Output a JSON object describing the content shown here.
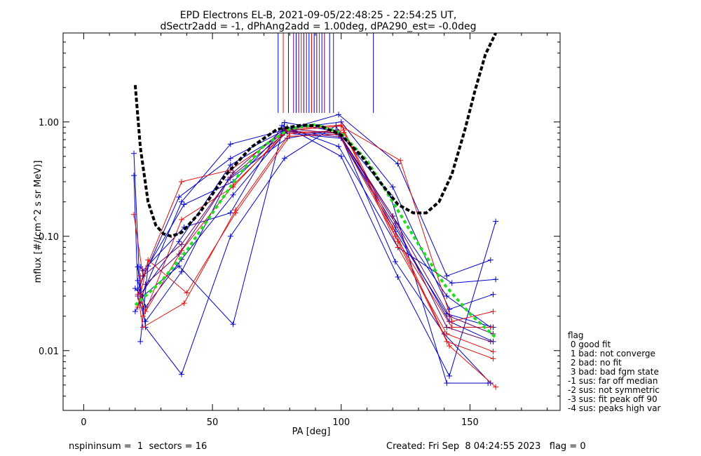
{
  "chart_data": {
    "type": "line",
    "title": "EPD Electrons EL-B, 2021-09-05/22:48:25 - 22:54:25 UT,",
    "subtitle": "dSectr2add = -1, dPhAng2add = 1.00deg, dPA290_est=  -0.0deg",
    "xlabel": "PA [deg]",
    "ylabel": "mflux [#/(cm^2 s sr MeV)]",
    "xlim": [
      -8,
      185
    ],
    "ylim": [
      0.003,
      6.0
    ],
    "yscale": "log",
    "xticks": [
      0,
      50,
      100,
      150
    ],
    "xtick_labels": [
      "0",
      "50",
      "100",
      "150"
    ],
    "yticks": [
      0.01,
      0.1,
      1.0
    ],
    "ytick_labels": [
      "0.01",
      "0.10",
      "1.00"
    ],
    "colors": {
      "blue": "#0000cc",
      "red": "#e01010",
      "purple": "#660066",
      "green": "#22dd22",
      "black": "#000000"
    },
    "series": [
      {
        "color": "blue",
        "x": [
          19.5,
          22,
          38,
          57,
          78,
          99,
          122,
          141,
          158
        ],
        "y": [
          0.53,
          0.028,
          0.2,
          0.64,
          0.85,
          1.16,
          0.43,
          0.045,
          0.062
        ]
      },
      {
        "color": "blue",
        "x": [
          19.5,
          21,
          37,
          57,
          79,
          100,
          120,
          142,
          159
        ],
        "y": [
          0.34,
          0.034,
          0.22,
          0.48,
          0.87,
          1.0,
          0.27,
          0.023,
          0.031
        ]
      },
      {
        "color": "blue",
        "x": [
          21,
          24,
          38,
          57,
          78,
          98,
          121,
          140,
          158
        ],
        "y": [
          0.054,
          0.016,
          0.0062,
          0.1,
          0.48,
          0.93,
          0.06,
          0.014,
          0.0052
        ]
      },
      {
        "color": "blue",
        "x": [
          22,
          25,
          39,
          58,
          79,
          100,
          122,
          142,
          160
        ],
        "y": [
          0.012,
          0.055,
          0.19,
          0.3,
          0.9,
          0.5,
          0.044,
          0.006,
          0.135
        ]
      },
      {
        "color": "blue",
        "x": [
          20,
          23,
          37,
          58,
          78,
          99,
          119,
          141,
          157
        ],
        "y": [
          0.022,
          0.03,
          0.055,
          0.017,
          0.99,
          0.82,
          0.23,
          0.0052,
          0.0052
        ]
      },
      {
        "color": "blue",
        "x": [
          21,
          24,
          38,
          56,
          79,
          98,
          121,
          141,
          159
        ],
        "y": [
          0.03,
          0.018,
          0.049,
          0.31,
          0.72,
          0.85,
          0.11,
          0.021,
          0.016
        ]
      },
      {
        "color": "blue",
        "x": [
          22,
          23,
          39,
          57,
          77,
          99,
          122,
          143,
          160
        ],
        "y": [
          0.054,
          0.05,
          0.12,
          0.16,
          0.93,
          0.61,
          0.08,
          0.039,
          0.042
        ]
      },
      {
        "color": "blue",
        "x": [
          20,
          22,
          37,
          57,
          78,
          100,
          120,
          141,
          158
        ],
        "y": [
          0.035,
          0.031,
          0.09,
          0.42,
          0.8,
          0.72,
          0.15,
          0.03,
          0.016
        ]
      },
      {
        "color": "blue",
        "x": [
          21,
          24,
          38,
          58,
          79,
          99,
          121,
          142,
          159
        ],
        "y": [
          0.041,
          0.024,
          0.063,
          0.23,
          0.84,
          0.77,
          0.12,
          0.018,
          0.012
        ]
      },
      {
        "color": "red",
        "x": [
          19.5,
          23,
          38,
          57,
          79,
          100,
          123,
          143,
          159
        ],
        "y": [
          0.155,
          0.045,
          0.3,
          0.38,
          0.84,
          0.92,
          0.46,
          0.018,
          0.022
        ]
      },
      {
        "color": "red",
        "x": [
          21,
          23,
          39,
          59,
          80,
          101,
          122,
          141,
          159
        ],
        "y": [
          0.031,
          0.016,
          0.026,
          0.17,
          0.79,
          0.85,
          0.08,
          0.014,
          0.0098
        ]
      },
      {
        "color": "red",
        "x": [
          22,
          24,
          38,
          58,
          79,
          100,
          120,
          142,
          160
        ],
        "y": [
          0.028,
          0.022,
          0.14,
          0.27,
          0.86,
          0.94,
          0.12,
          0.011,
          0.0048
        ]
      },
      {
        "color": "red",
        "x": [
          21,
          25,
          40,
          59,
          80,
          99,
          121,
          143,
          158
        ],
        "y": [
          0.024,
          0.062,
          0.032,
          0.16,
          0.75,
          0.78,
          0.1,
          0.016,
          0.016
        ]
      },
      {
        "color": "red",
        "x": [
          22,
          23,
          38,
          58,
          79,
          101,
          122,
          141,
          159
        ],
        "y": [
          0.045,
          0.02,
          0.075,
          0.28,
          0.82,
          0.81,
          0.09,
          0.012,
          0.0085
        ]
      },
      {
        "color": "purple",
        "x": [
          21,
          23,
          38,
          57,
          79,
          100,
          120,
          142,
          159
        ],
        "y": [
          0.03,
          0.045,
          0.085,
          0.33,
          0.82,
          0.74,
          0.15,
          0.02,
          0.014
        ]
      },
      {
        "color": "purple",
        "x": [
          22,
          24,
          37,
          58,
          78,
          99,
          121,
          141,
          158
        ],
        "y": [
          0.026,
          0.038,
          0.07,
          0.36,
          0.88,
          0.79,
          0.13,
          0.016,
          0.012
        ]
      }
    ],
    "fit_green": {
      "x": [
        20,
        30,
        40,
        50,
        60,
        70,
        80,
        90,
        100,
        110,
        120,
        130,
        140,
        150,
        160
      ],
      "y": [
        0.025,
        0.04,
        0.075,
        0.16,
        0.34,
        0.62,
        0.87,
        0.95,
        0.8,
        0.46,
        0.2,
        0.085,
        0.038,
        0.021,
        0.013
      ]
    },
    "fit_black": {
      "x": [
        20,
        22,
        25,
        28,
        31,
        34,
        38,
        45,
        55,
        65,
        75,
        85,
        92,
        100,
        108,
        115,
        122,
        128,
        133,
        138,
        143,
        148,
        152,
        156,
        160
      ],
      "y": [
        2.1,
        0.6,
        0.2,
        0.125,
        0.105,
        0.1,
        0.108,
        0.16,
        0.34,
        0.6,
        0.86,
        0.94,
        0.92,
        0.77,
        0.5,
        0.3,
        0.19,
        0.16,
        0.16,
        0.2,
        0.35,
        0.85,
        1.9,
        3.9,
        6.0
      ]
    },
    "vertical_markers": [
      {
        "x": 75.5,
        "color": "blue"
      },
      {
        "x": 77.5,
        "color": "red"
      },
      {
        "x": 79.5,
        "color": "blue"
      },
      {
        "x": 81.5,
        "color": "purple"
      },
      {
        "x": 82.5,
        "color": "blue"
      },
      {
        "x": 83.5,
        "color": "purple"
      },
      {
        "x": 84.5,
        "color": "red"
      },
      {
        "x": 85.5,
        "color": "blue"
      },
      {
        "x": 86.5,
        "color": "purple"
      },
      {
        "x": 87.5,
        "color": "blue"
      },
      {
        "x": 88.5,
        "color": "red"
      },
      {
        "x": 89.5,
        "color": "blue"
      },
      {
        "x": 90.5,
        "color": "purple"
      },
      {
        "x": 91.5,
        "color": "red"
      },
      {
        "x": 92.5,
        "color": "blue"
      },
      {
        "x": 93.5,
        "color": "purple"
      },
      {
        "x": 95.5,
        "color": "blue"
      },
      {
        "x": 97,
        "color": "purple"
      },
      {
        "x": 112.5,
        "color": "blue"
      }
    ],
    "vertical_marker_bottom": 1.2
  },
  "legend": {
    "title": "flag",
    "items": [
      " 0 good fit",
      " 1 bad: not converge",
      " 2 bad: no fit",
      " 3 bad: bad fgm state",
      "-1 sus: far off median",
      "-2 sus: not symmetric",
      "-3 sus: fit peak off 90",
      "-4 sus: peaks high var"
    ]
  },
  "footer": {
    "left": "nspininsum =  1  sectors = 16",
    "right": "Created: Fri Sep  8 04:24:55 2023   flag = 0"
  }
}
